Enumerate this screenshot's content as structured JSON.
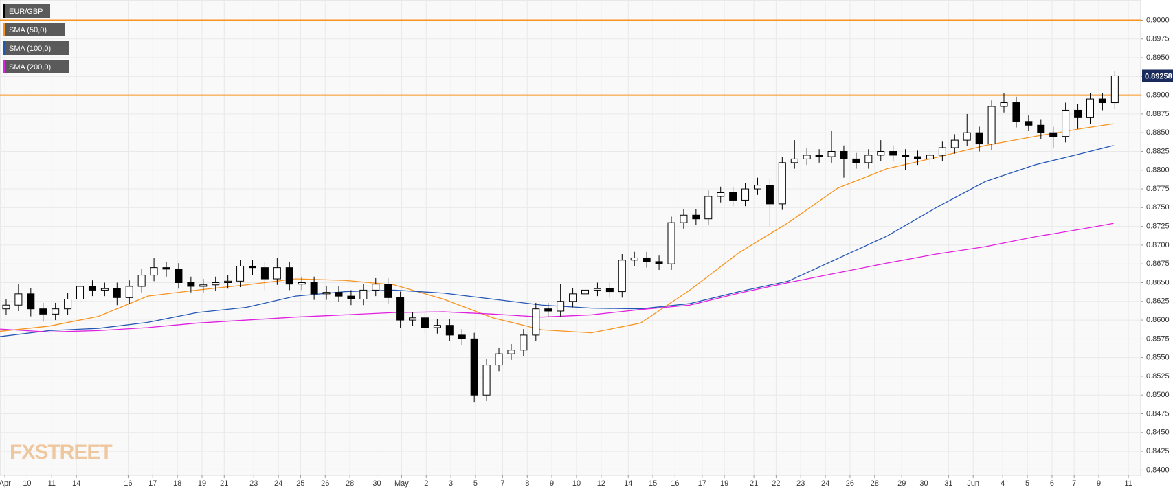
{
  "chart_data": {
    "type": "candlestick",
    "watermark": "FXSTREET",
    "candles": {
      "name": "EUR/GBP",
      "color": "#000000",
      "x": [
        0.25,
        0.75,
        1.25,
        1.75,
        2.25,
        2.75,
        3.25,
        3.75,
        4.25,
        4.75,
        5.25,
        5.75,
        6.25,
        6.75,
        7.25,
        7.75,
        8.25,
        8.75,
        9.25,
        9.75,
        10.25,
        10.75,
        11.25,
        11.75,
        12.25,
        12.75,
        13.25,
        13.75,
        14.25,
        14.75,
        15.25,
        15.75,
        16.25,
        16.75,
        17.25,
        17.75,
        18.25,
        18.75,
        19.25,
        19.75,
        20.25,
        20.75,
        21.25,
        21.75,
        22.25,
        22.75,
        23.25,
        23.75,
        24.25,
        24.75,
        25.25,
        25.75,
        26.25,
        26.75,
        27.25,
        27.75,
        28.25,
        28.75,
        29.25,
        29.75,
        30.25,
        30.75,
        31.25,
        31.75,
        32.25,
        32.75,
        33.25,
        33.75,
        34.25,
        34.75,
        35.25,
        35.75,
        36.25,
        36.75,
        37.25,
        37.75,
        38.25,
        38.75,
        39.25,
        39.75,
        40.25,
        40.75,
        41.25,
        41.75,
        42.25,
        42.75,
        43.25,
        43.75,
        44.25,
        44.75,
        45.25
      ],
      "open": [
        0.8615,
        0.862,
        0.8635,
        0.8615,
        0.8608,
        0.8615,
        0.8628,
        0.8645,
        0.864,
        0.8642,
        0.863,
        0.8645,
        0.866,
        0.867,
        0.8668,
        0.865,
        0.8645,
        0.8647,
        0.865,
        0.8652,
        0.8672,
        0.867,
        0.8655,
        0.867,
        0.8648,
        0.865,
        0.8635,
        0.8637,
        0.8632,
        0.8628,
        0.864,
        0.8648,
        0.863,
        0.86,
        0.8603,
        0.859,
        0.8593,
        0.858,
        0.8575,
        0.85,
        0.854,
        0.8555,
        0.856,
        0.858,
        0.8615,
        0.8612,
        0.8625,
        0.8635,
        0.864,
        0.8642,
        0.8638,
        0.868,
        0.8683,
        0.8678,
        0.8675,
        0.873,
        0.874,
        0.8735,
        0.8765,
        0.877,
        0.876,
        0.8775,
        0.878,
        0.8755,
        0.881,
        0.8815,
        0.882,
        0.8818,
        0.8825,
        0.8815,
        0.881,
        0.882,
        0.8825,
        0.882,
        0.8818,
        0.8815,
        0.882,
        0.883,
        0.884,
        0.885,
        0.8835,
        0.8885,
        0.889,
        0.8865,
        0.886,
        0.885,
        0.8845,
        0.888,
        0.887,
        0.8895,
        0.889
      ],
      "high": [
        0.8628,
        0.8648,
        0.8643,
        0.8623,
        0.8623,
        0.8636,
        0.8655,
        0.8653,
        0.865,
        0.865,
        0.8653,
        0.8668,
        0.8683,
        0.8678,
        0.8676,
        0.8658,
        0.8655,
        0.8658,
        0.866,
        0.868,
        0.868,
        0.8678,
        0.8683,
        0.8678,
        0.8658,
        0.8658,
        0.8645,
        0.8645,
        0.864,
        0.8648,
        0.8656,
        0.8656,
        0.8638,
        0.8611,
        0.8611,
        0.8601,
        0.8601,
        0.8588,
        0.8583,
        0.8548,
        0.8563,
        0.8568,
        0.8588,
        0.8623,
        0.8623,
        0.8648,
        0.8643,
        0.8648,
        0.865,
        0.865,
        0.8688,
        0.8691,
        0.8691,
        0.8686,
        0.8738,
        0.8748,
        0.8748,
        0.8773,
        0.8778,
        0.8778,
        0.8783,
        0.879,
        0.8788,
        0.8818,
        0.884,
        0.883,
        0.8828,
        0.8852,
        0.8833,
        0.8823,
        0.8828,
        0.884,
        0.8833,
        0.8828,
        0.8826,
        0.8828,
        0.8838,
        0.8848,
        0.8875,
        0.8858,
        0.8893,
        0.8903,
        0.8898,
        0.8873,
        0.8868,
        0.8858,
        0.889,
        0.8888,
        0.8903,
        0.8903,
        0.8932
      ],
      "low": [
        0.8607,
        0.8612,
        0.8605,
        0.8598,
        0.86,
        0.8607,
        0.862,
        0.8632,
        0.8632,
        0.862,
        0.8622,
        0.8637,
        0.8652,
        0.8658,
        0.8642,
        0.8637,
        0.8637,
        0.8639,
        0.8642,
        0.8644,
        0.866,
        0.864,
        0.8647,
        0.864,
        0.864,
        0.8627,
        0.8627,
        0.8624,
        0.862,
        0.862,
        0.8632,
        0.8622,
        0.859,
        0.8592,
        0.8582,
        0.8582,
        0.8572,
        0.8567,
        0.849,
        0.8492,
        0.8532,
        0.8547,
        0.8552,
        0.8572,
        0.8604,
        0.8604,
        0.8617,
        0.8627,
        0.8632,
        0.863,
        0.863,
        0.8672,
        0.867,
        0.8667,
        0.8667,
        0.8722,
        0.8727,
        0.8727,
        0.8757,
        0.8752,
        0.8752,
        0.8767,
        0.8725,
        0.8747,
        0.8802,
        0.8807,
        0.881,
        0.881,
        0.879,
        0.8802,
        0.8802,
        0.8812,
        0.8812,
        0.88,
        0.8807,
        0.8807,
        0.8812,
        0.8822,
        0.8832,
        0.8825,
        0.8827,
        0.8877,
        0.8857,
        0.8852,
        0.8842,
        0.883,
        0.8837,
        0.8855,
        0.8862,
        0.888,
        0.8882
      ],
      "close": [
        0.862,
        0.8635,
        0.8615,
        0.8608,
        0.8615,
        0.8628,
        0.8645,
        0.864,
        0.8642,
        0.863,
        0.8645,
        0.866,
        0.867,
        0.8668,
        0.865,
        0.8645,
        0.8647,
        0.865,
        0.8652,
        0.8672,
        0.867,
        0.8655,
        0.867,
        0.8648,
        0.865,
        0.8635,
        0.8637,
        0.8632,
        0.8628,
        0.864,
        0.8648,
        0.863,
        0.86,
        0.8603,
        0.859,
        0.8593,
        0.858,
        0.8575,
        0.85,
        0.854,
        0.8555,
        0.856,
        0.858,
        0.8615,
        0.8612,
        0.8625,
        0.8635,
        0.864,
        0.8642,
        0.8638,
        0.868,
        0.8683,
        0.8678,
        0.8675,
        0.873,
        0.874,
        0.8735,
        0.8765,
        0.877,
        0.876,
        0.8775,
        0.878,
        0.8755,
        0.881,
        0.8815,
        0.882,
        0.8818,
        0.8825,
        0.8815,
        0.881,
        0.882,
        0.8825,
        0.882,
        0.8818,
        0.8815,
        0.882,
        0.883,
        0.884,
        0.885,
        0.8835,
        0.8885,
        0.889,
        0.8865,
        0.886,
        0.885,
        0.8845,
        0.888,
        0.887,
        0.8895,
        0.889,
        0.89258
      ]
    },
    "series": [
      {
        "name": "SMA (50,0)",
        "color": "#f7931e",
        "x": [
          0,
          2,
          4,
          6,
          8,
          10,
          12,
          14,
          16,
          18,
          20,
          22,
          24,
          26,
          28,
          30,
          32,
          34,
          36,
          38,
          40,
          42,
          44,
          45.2
        ],
        "values": [
          0.8585,
          0.8592,
          0.8605,
          0.8632,
          0.864,
          0.8647,
          0.8655,
          0.8653,
          0.8647,
          0.8628,
          0.8603,
          0.8587,
          0.8583,
          0.8596,
          0.864,
          0.869,
          0.873,
          0.8776,
          0.8802,
          0.8817,
          0.8833,
          0.8845,
          0.8856,
          0.8862
        ]
      },
      {
        "name": "SMA (100,0)",
        "color": "#2457b5",
        "x": [
          0,
          2,
          4,
          6,
          8,
          10,
          12,
          14,
          16,
          18,
          20,
          22,
          24,
          26,
          28,
          30,
          32,
          34,
          36,
          38,
          40,
          42,
          44,
          45.2
        ],
        "values": [
          0.8578,
          0.8586,
          0.8589,
          0.8597,
          0.861,
          0.8617,
          0.8632,
          0.8638,
          0.864,
          0.8636,
          0.8628,
          0.862,
          0.8616,
          0.8615,
          0.8622,
          0.8638,
          0.8652,
          0.8682,
          0.8712,
          0.875,
          0.8785,
          0.8807,
          0.8823,
          0.8833
        ]
      },
      {
        "name": "SMA (200,0)",
        "color": "#e020e0",
        "x": [
          0,
          2,
          4,
          6,
          8,
          10,
          12,
          14,
          16,
          18,
          20,
          22,
          24,
          26,
          28,
          30,
          32,
          34,
          36,
          38,
          40,
          42,
          44,
          45.2
        ],
        "values": [
          0.8588,
          0.8584,
          0.8586,
          0.859,
          0.8596,
          0.86,
          0.8604,
          0.8607,
          0.861,
          0.8611,
          0.8608,
          0.8604,
          0.8607,
          0.8614,
          0.862,
          0.8636,
          0.865,
          0.8663,
          0.8676,
          0.8688,
          0.8698,
          0.8711,
          0.8722,
          0.8729
        ]
      }
    ],
    "hlines": [
      {
        "value": 0.9,
        "color": "#f7931e"
      },
      {
        "value": 0.89,
        "color": "#f7931e"
      }
    ],
    "last_price": 0.89258,
    "last_price_color": "#1b2a5c",
    "xlim": [
      0,
      46.3
    ],
    "ylim": [
      0.8393,
      0.9027
    ],
    "grid": true,
    "xticks": [
      {
        "value": 0.2,
        "label": "Apr"
      },
      {
        "value": 1.1,
        "label": "10"
      },
      {
        "value": 2.1,
        "label": "11"
      },
      {
        "value": 3.1,
        "label": "14"
      },
      {
        "value": 5.2,
        "label": "16"
      },
      {
        "value": 6.2,
        "label": "17"
      },
      {
        "value": 7.2,
        "label": "18"
      },
      {
        "value": 8.2,
        "label": "19"
      },
      {
        "value": 9.1,
        "label": "21"
      },
      {
        "value": 10.3,
        "label": "23"
      },
      {
        "value": 11.3,
        "label": "24"
      },
      {
        "value": 12.2,
        "label": "25"
      },
      {
        "value": 13.2,
        "label": "26"
      },
      {
        "value": 14.2,
        "label": "28"
      },
      {
        "value": 15.3,
        "label": "30"
      },
      {
        "value": 16.3,
        "label": "May"
      },
      {
        "value": 17.3,
        "label": "2"
      },
      {
        "value": 18.3,
        "label": "3"
      },
      {
        "value": 19.3,
        "label": "5"
      },
      {
        "value": 20.4,
        "label": "7"
      },
      {
        "value": 21.4,
        "label": "8"
      },
      {
        "value": 22.4,
        "label": "9"
      },
      {
        "value": 23.4,
        "label": "10"
      },
      {
        "value": 24.4,
        "label": "12"
      },
      {
        "value": 25.5,
        "label": "14"
      },
      {
        "value": 26.5,
        "label": "15"
      },
      {
        "value": 27.4,
        "label": "16"
      },
      {
        "value": 28.5,
        "label": "17"
      },
      {
        "value": 29.4,
        "label": "19"
      },
      {
        "value": 30.6,
        "label": "21"
      },
      {
        "value": 31.5,
        "label": "22"
      },
      {
        "value": 32.5,
        "label": "23"
      },
      {
        "value": 33.5,
        "label": "24"
      },
      {
        "value": 34.5,
        "label": "26"
      },
      {
        "value": 35.5,
        "label": "28"
      },
      {
        "value": 36.6,
        "label": "29"
      },
      {
        "value": 37.5,
        "label": "30"
      },
      {
        "value": 38.5,
        "label": "31"
      },
      {
        "value": 39.5,
        "label": "Jun"
      },
      {
        "value": 40.7,
        "label": "4"
      },
      {
        "value": 41.7,
        "label": "5"
      },
      {
        "value": 42.7,
        "label": "6"
      },
      {
        "value": 43.6,
        "label": "7"
      },
      {
        "value": 44.6,
        "label": "9"
      },
      {
        "value": 45.8,
        "label": "11"
      }
    ],
    "yticks": [
      {
        "value": 0.84,
        "label": "0.8400"
      },
      {
        "value": 0.8425,
        "label": "0.8425"
      },
      {
        "value": 0.845,
        "label": "0.8450"
      },
      {
        "value": 0.8475,
        "label": "0.8475"
      },
      {
        "value": 0.85,
        "label": "0.8500"
      },
      {
        "value": 0.8525,
        "label": "0.8525"
      },
      {
        "value": 0.855,
        "label": "0.8550"
      },
      {
        "value": 0.8575,
        "label": "0.8575"
      },
      {
        "value": 0.86,
        "label": "0.8600"
      },
      {
        "value": 0.8625,
        "label": "0.8625"
      },
      {
        "value": 0.865,
        "label": "0.8650"
      },
      {
        "value": 0.8675,
        "label": "0.8675"
      },
      {
        "value": 0.87,
        "label": "0.8700"
      },
      {
        "value": 0.8725,
        "label": "0.8725"
      },
      {
        "value": 0.875,
        "label": "0.8750"
      },
      {
        "value": 0.8775,
        "label": "0.8775"
      },
      {
        "value": 0.88,
        "label": "0.8800"
      },
      {
        "value": 0.8825,
        "label": "0.8825"
      },
      {
        "value": 0.885,
        "label": "0.8850"
      },
      {
        "value": 0.8875,
        "label": "0.8875"
      },
      {
        "value": 0.89,
        "label": "0.8900"
      },
      {
        "value": 0.8925,
        "label": "0.8925"
      },
      {
        "value": 0.895,
        "label": "0.8950"
      },
      {
        "value": 0.8975,
        "label": "0.8975"
      },
      {
        "value": 0.9,
        "label": "0.9000"
      }
    ]
  }
}
